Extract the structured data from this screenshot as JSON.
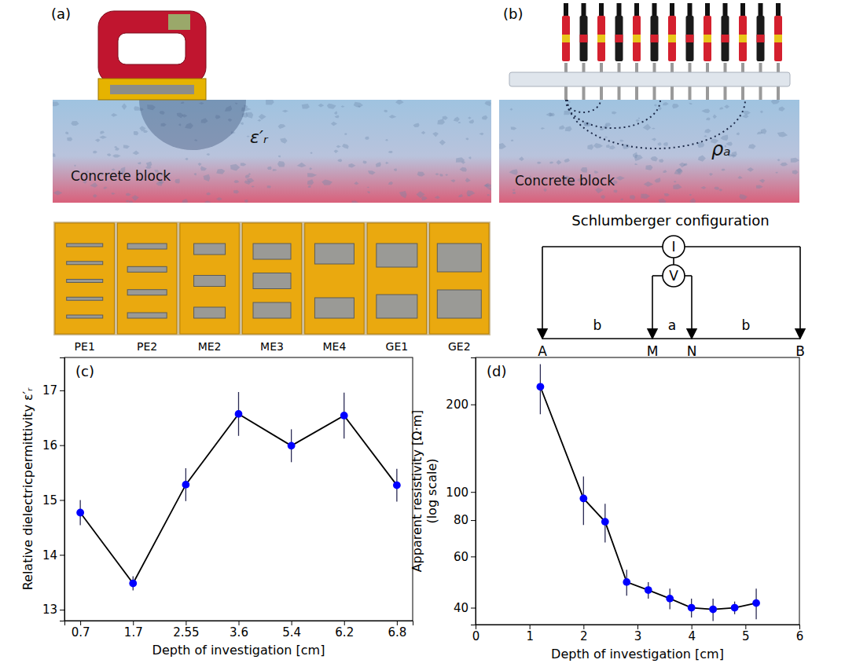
{
  "chart_data": [
    {
      "type": "line",
      "panel_label": "(c)",
      "xlabel": "Depth of investigation [cm]",
      "ylabel": "Relative dielectricpermittivity ε′ᵣ",
      "categories": [
        "0.7",
        "1.7",
        "2.55",
        "3.6",
        "5.4",
        "6.2",
        "6.8"
      ],
      "values": [
        14.77,
        13.48,
        15.28,
        16.57,
        15.99,
        16.54,
        15.27
      ],
      "errors": [
        0.23,
        0.13,
        0.3,
        0.4,
        0.3,
        0.42,
        0.3
      ],
      "color": "#0000ff",
      "marker": "circle",
      "ylim": [
        12.8,
        17.6
      ],
      "yticks": [
        13,
        14,
        15,
        16,
        17
      ]
    },
    {
      "type": "line",
      "panel_label": "(d)",
      "xlabel": "Depth of investigation [cm]",
      "ylabel": "Apparent resistivity [Ω·m]\n(log scale)",
      "x": [
        1.2,
        2.0,
        2.4,
        2.8,
        3.2,
        3.6,
        4.0,
        4.4,
        4.8,
        5.2
      ],
      "values": [
        230,
        95,
        79,
        49,
        46,
        43,
        40,
        39.5,
        40,
        41.5
      ],
      "errors": [
        45,
        18,
        12,
        5,
        3,
        3.5,
        3,
        3.5,
        2,
        5
      ],
      "color": "#0000ff",
      "marker": "circle",
      "log": "y",
      "xlim": [
        0,
        6
      ],
      "xticks": [
        0,
        1,
        2,
        3,
        4,
        5,
        6
      ],
      "ylim": [
        35,
        290
      ],
      "yticks": [
        40,
        60,
        80,
        100,
        200
      ]
    }
  ],
  "illustration": {
    "panel_a": {
      "label": "(a)",
      "block_text": "Concrete block",
      "quantity": "ε′ᵣ",
      "probes": [
        "PE1",
        "PE2",
        "ME2",
        "ME3",
        "ME4",
        "GE1",
        "GE2"
      ]
    },
    "panel_b": {
      "label": "(b)",
      "block_text": "Concrete block",
      "quantity": "ρₐ",
      "configuration_title": "Schlumberger configuration",
      "meters": [
        "I",
        "V"
      ],
      "electrodes": [
        "A",
        "M",
        "N",
        "B"
      ],
      "spacings": [
        "b",
        "a",
        "b"
      ]
    }
  }
}
